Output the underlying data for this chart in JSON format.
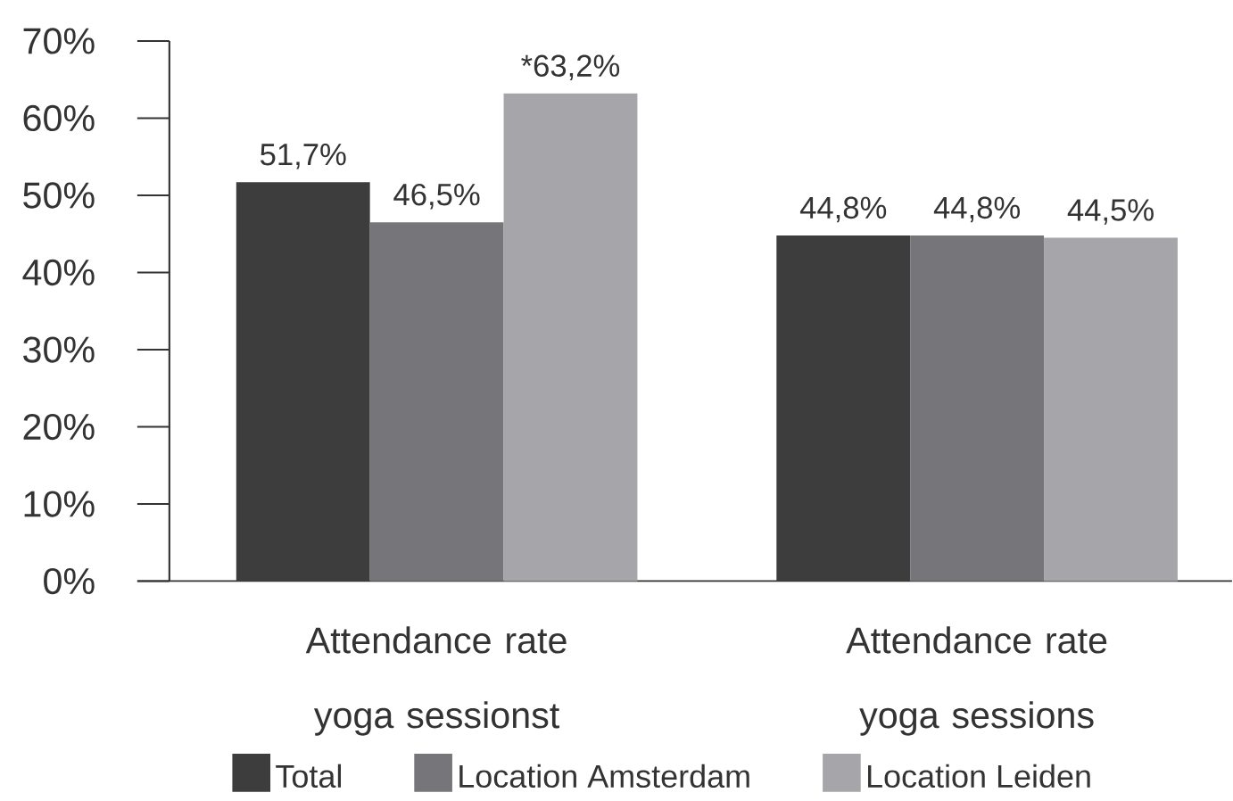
{
  "chart_data": {
    "type": "bar",
    "categories": [
      "Attendance rate yoga sessionst",
      "Attendance rate yoga sessions"
    ],
    "series": [
      {
        "name": "Total",
        "color": "#3d3d3e",
        "values": [
          51.7,
          44.8
        ],
        "value_labels": [
          "51,7%",
          "44,8%"
        ]
      },
      {
        "name": "Location Amsterdam",
        "color": "#76767a",
        "values": [
          46.5,
          44.8
        ],
        "value_labels": [
          "46,5%",
          "44,8%"
        ]
      },
      {
        "name": "Location Leiden",
        "color": "#a6a6aa",
        "values": [
          63.2,
          44.5
        ],
        "value_labels": [
          "*63,2%",
          "44,5%"
        ]
      }
    ],
    "ylim": [
      0,
      70
    ],
    "yticks": [
      {
        "value": 0,
        "label": "0%"
      },
      {
        "value": 10,
        "label": "10%"
      },
      {
        "value": 20,
        "label": "20%"
      },
      {
        "value": 30,
        "label": "30%"
      },
      {
        "value": 40,
        "label": "40%"
      },
      {
        "value": 50,
        "label": "50%"
      },
      {
        "value": 60,
        "label": "60%"
      },
      {
        "value": 70,
        "label": "70%"
      }
    ],
    "legend": "bottom"
  }
}
